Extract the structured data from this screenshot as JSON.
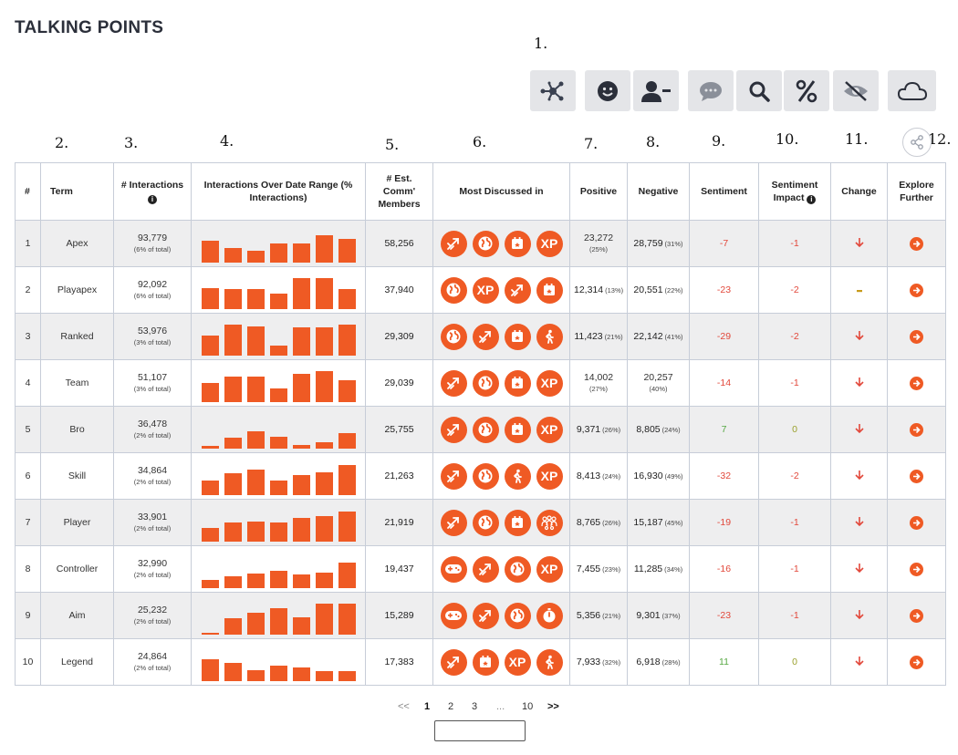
{
  "title": "TALKING POINTS",
  "annotations": [
    "1.",
    "2.",
    "3.",
    "4.",
    "5.",
    "6.",
    "7.",
    "8.",
    "9.",
    "10.",
    "11.",
    "12."
  ],
  "toolbar": [
    "network-icon",
    "smiley-icon",
    "user-minus-icon",
    "chat-bubble-icon",
    "search-icon",
    "percent-icon",
    "eye-slash-icon",
    "cloud-icon"
  ],
  "headers": {
    "num": "#",
    "term": "Term",
    "interactions": "# Interactions",
    "over_range": "Interactions Over Date Range (% Interactions)",
    "est_members": "# Est. Comm' Members",
    "discussed_in": "Most Discussed in",
    "positive": "Positive",
    "negative": "Negative",
    "sentiment": "Sentiment",
    "impact": "Sentiment Impact",
    "change": "Change",
    "explore": "Explore Further"
  },
  "rows": [
    {
      "num": "1",
      "term": "Apex",
      "interactions": "93,779",
      "share": "(6% of total)",
      "bars": [
        0.71,
        0.47,
        0.38,
        0.62,
        0.62,
        0.88,
        0.76
      ],
      "members": "58,256",
      "icons": [
        "rocket",
        "globe",
        "calendar",
        "xp"
      ],
      "positive": "23,272",
      "positive_pct": "(25%)",
      "pos_stacked": true,
      "negative": "28,759",
      "negative_pct": "(31%)",
      "neg_stacked": false,
      "sentiment": "-7",
      "impact": "-1",
      "change": "down"
    },
    {
      "num": "2",
      "term": "Playapex",
      "interactions": "92,092",
      "share": "(6% of total)",
      "bars": [
        0.68,
        0.65,
        0.65,
        0.5,
        1.0,
        1.0,
        0.65
      ],
      "members": "37,940",
      "icons": [
        "globe",
        "xp",
        "rocket",
        "calendar"
      ],
      "positive": "12,314",
      "positive_pct": "(13%)",
      "pos_stacked": false,
      "negative": "20,551",
      "negative_pct": "(22%)",
      "neg_stacked": false,
      "sentiment": "-23",
      "impact": "-2",
      "change": "flat"
    },
    {
      "num": "3",
      "term": "Ranked",
      "interactions": "53,976",
      "share": "(3% of total)",
      "bars": [
        0.65,
        1.0,
        0.94,
        0.32,
        0.91,
        0.91,
        1.0
      ],
      "members": "29,309",
      "icons": [
        "globe",
        "rocket",
        "calendar",
        "walker"
      ],
      "positive": "11,423",
      "positive_pct": "(21%)",
      "pos_stacked": false,
      "negative": "22,142",
      "negative_pct": "(41%)",
      "neg_stacked": false,
      "sentiment": "-29",
      "impact": "-2",
      "change": "down"
    },
    {
      "num": "4",
      "term": "Team",
      "interactions": "51,107",
      "share": "(3% of total)",
      "bars": [
        0.62,
        0.82,
        0.82,
        0.44,
        0.91,
        1.0,
        0.71
      ],
      "members": "29,039",
      "icons": [
        "rocket",
        "globe",
        "calendar",
        "xp"
      ],
      "positive": "14,002",
      "positive_pct": "(27%)",
      "pos_stacked": true,
      "negative": "20,257",
      "negative_pct": "(40%)",
      "neg_stacked": true,
      "sentiment": "-14",
      "impact": "-1",
      "change": "down"
    },
    {
      "num": "5",
      "term": "Bro",
      "interactions": "36,478",
      "share": "(2% of total)",
      "bars": [
        0.09,
        0.35,
        0.56,
        0.38,
        0.12,
        0.21,
        0.5
      ],
      "members": "25,755",
      "icons": [
        "rocket",
        "globe",
        "calendar",
        "xp"
      ],
      "positive": "9,371",
      "positive_pct": "(26%)",
      "pos_stacked": false,
      "negative": "8,805",
      "negative_pct": "(24%)",
      "neg_stacked": false,
      "sentiment": "7",
      "impact": "0",
      "change": "down"
    },
    {
      "num": "6",
      "term": "Skill",
      "interactions": "34,864",
      "share": "(2% of total)",
      "bars": [
        0.47,
        0.71,
        0.82,
        0.47,
        0.65,
        0.74,
        0.97
      ],
      "members": "21,263",
      "icons": [
        "rocket",
        "globe",
        "walker",
        "xp"
      ],
      "positive": "8,413",
      "positive_pct": "(24%)",
      "pos_stacked": false,
      "negative": "16,930",
      "negative_pct": "(49%)",
      "neg_stacked": false,
      "sentiment": "-32",
      "impact": "-2",
      "change": "down"
    },
    {
      "num": "7",
      "term": "Player",
      "interactions": "33,901",
      "share": "(2% of total)",
      "bars": [
        0.44,
        0.62,
        0.65,
        0.62,
        0.76,
        0.82,
        0.97
      ],
      "members": "21,919",
      "icons": [
        "rocket",
        "globe",
        "calendar",
        "crowd"
      ],
      "positive": "8,765",
      "positive_pct": "(26%)",
      "pos_stacked": false,
      "negative": "15,187",
      "negative_pct": "(45%)",
      "neg_stacked": false,
      "sentiment": "-19",
      "impact": "-1",
      "change": "down"
    },
    {
      "num": "8",
      "term": "Controller",
      "interactions": "32,990",
      "share": "(2% of total)",
      "bars": [
        0.26,
        0.38,
        0.47,
        0.56,
        0.44,
        0.5,
        0.82
      ],
      "members": "19,437",
      "icons": [
        "gamepad",
        "rocket",
        "globe",
        "xp"
      ],
      "positive": "7,455",
      "positive_pct": "(23%)",
      "pos_stacked": false,
      "negative": "11,285",
      "negative_pct": "(34%)",
      "neg_stacked": false,
      "sentiment": "-16",
      "impact": "-1",
      "change": "down"
    },
    {
      "num": "9",
      "term": "Aim",
      "interactions": "25,232",
      "share": "(2% of total)",
      "bars": [
        0.06,
        0.53,
        0.71,
        0.85,
        0.56,
        1.0,
        1.0
      ],
      "members": "15,289",
      "icons": [
        "gamepad",
        "rocket",
        "globe",
        "stopwatch"
      ],
      "positive": "5,356",
      "positive_pct": "(21%)",
      "pos_stacked": false,
      "negative": "9,301",
      "negative_pct": "(37%)",
      "neg_stacked": false,
      "sentiment": "-23",
      "impact": "-1",
      "change": "down"
    },
    {
      "num": "10",
      "term": "Legend",
      "interactions": "24,864",
      "share": "(2% of total)",
      "bars": [
        0.71,
        0.59,
        0.35,
        0.5,
        0.44,
        0.32,
        0.32
      ],
      "members": "17,383",
      "icons": [
        "rocket",
        "calendar",
        "xp",
        "walker"
      ],
      "positive": "7,933",
      "positive_pct": "(32%)",
      "pos_stacked": false,
      "negative": "6,918",
      "negative_pct": "(28%)",
      "neg_stacked": false,
      "sentiment": "11",
      "impact": "0",
      "change": "down"
    }
  ],
  "icon_labels": {
    "xp": "XP"
  },
  "pagination": {
    "prev": "<<",
    "pages": [
      "1",
      "2",
      "3",
      "...",
      "10"
    ],
    "next": ">>",
    "current": "1"
  },
  "colors": {
    "accent": "#ef5a24",
    "negative": "#e2483b",
    "positive": "#56a843",
    "neutral": "#9aa02c"
  }
}
